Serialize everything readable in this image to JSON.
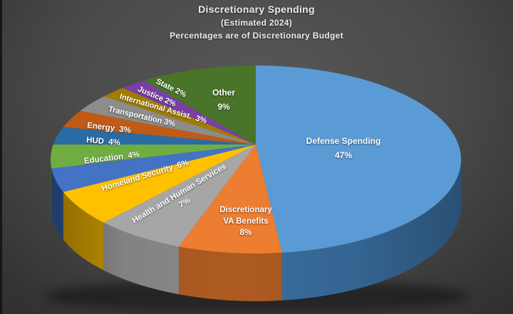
{
  "title_block": {
    "title": "Discretionary Spending",
    "subtitle": "(Estimated 2024)",
    "note": "Percentages are of Discretionary Budget"
  },
  "chart_data": {
    "type": "pie",
    "style": "3d-pie",
    "title": "Discretionary Spending",
    "subtitle": "(Estimated 2024)",
    "note": "Percentages are of Discretionary Budget",
    "unit": "%",
    "legend": "none",
    "labels_on_slices": true,
    "background_color": "#4a4a4a",
    "slices": [
      {
        "id": "defense",
        "label": "Defense Spending",
        "value": 47,
        "color": "#5B9BD5",
        "side_color": "#3A6FA0",
        "label_lines": [
          "Defense Spending",
          "47%"
        ]
      },
      {
        "id": "va",
        "label": "Discretionary VA Benefits",
        "value": 8,
        "color": "#ED7D31",
        "side_color": "#AE5B21",
        "label_lines": [
          "Discretionary",
          "VA Benefits",
          "8%"
        ]
      },
      {
        "id": "hhs",
        "label": "Health and Human Services",
        "value": 7,
        "color": "#A6A6A6",
        "side_color": "#8A8A8A",
        "label_lines": [
          "Health and Human Services",
          "7%"
        ]
      },
      {
        "id": "homeland",
        "label": "Homeland Security",
        "value": 6,
        "color": "#FFC000",
        "side_color": "#C69500",
        "label_lines": [
          "Homeland Security  6%"
        ]
      },
      {
        "id": "education",
        "label": "Education",
        "value": 4,
        "color": "#4472C4",
        "side_color": "#2F5496",
        "label_lines": [
          "Education  4%"
        ]
      },
      {
        "id": "hud",
        "label": "HUD",
        "value": 4,
        "color": "#6FAD43",
        "side_color": "#527F31",
        "label_lines": [
          "HUD  4%"
        ]
      },
      {
        "id": "energy",
        "label": "Energy",
        "value": 3,
        "color": "#2B6BA3",
        "side_color": "#1F4E79",
        "label_lines": [
          "Energy  3%"
        ]
      },
      {
        "id": "transportation",
        "label": "Transportation",
        "value": 3,
        "color": "#C05A17",
        "side_color": "#8F4311",
        "label_lines": [
          "Transportation 3%"
        ]
      },
      {
        "id": "international",
        "label": "International Assist.",
        "value": 3,
        "color": "#8C8C8C",
        "side_color": "#696969",
        "label_lines": [
          "International Assist.  3%"
        ]
      },
      {
        "id": "justice",
        "label": "Justice",
        "value": 2,
        "color": "#A17C00",
        "side_color": "#7A5E00",
        "label_lines": [
          "Justice 2%"
        ]
      },
      {
        "id": "state",
        "label": "State",
        "value": 2,
        "color": "#7A3FA5",
        "side_color": "#5B2F7C",
        "label_lines": [
          "State 2%"
        ]
      },
      {
        "id": "other",
        "label": "Other",
        "value": 9,
        "color": "#4A7429",
        "side_color": "#36551E",
        "label_lines": [
          "Other",
          "9%"
        ]
      }
    ]
  }
}
